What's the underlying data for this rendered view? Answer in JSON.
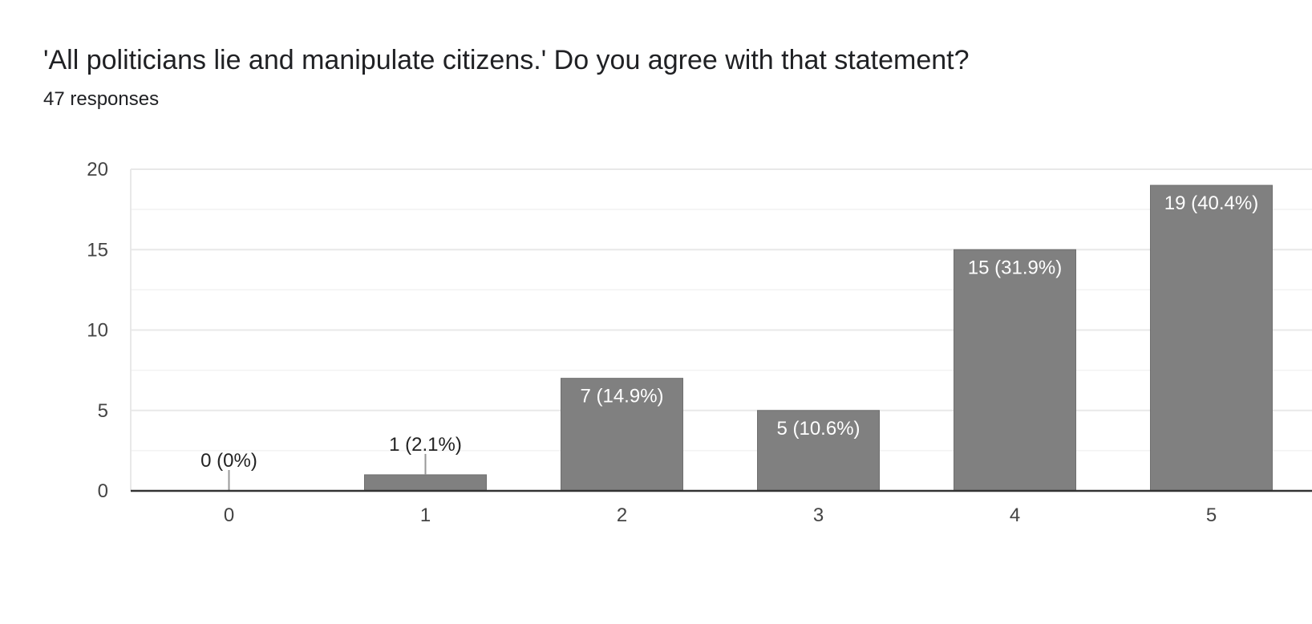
{
  "title": "'All politicians lie and manipulate citizens.' Do you agree with that statement?",
  "subtitle": "47 responses",
  "chart_data": {
    "type": "bar",
    "title": "'All politicians lie and manipulate citizens.' Do you agree with that statement?",
    "subtitle": "47 responses",
    "categories": [
      "0",
      "1",
      "2",
      "3",
      "4",
      "5"
    ],
    "values": [
      0,
      1,
      7,
      5,
      15,
      19
    ],
    "labels": [
      "0 (0%)",
      "1 (2.1%)",
      "7 (14.9%)",
      "5 (10.6%)",
      "15 (31.9%)",
      "19 (40.4%)"
    ],
    "ylim": [
      0,
      20
    ],
    "yticks": [
      0,
      5,
      10,
      15,
      20
    ],
    "grid": true,
    "colors": {
      "bar": "#808080",
      "grid": "#e8e8e8",
      "minor_grid": "#f2f2f2",
      "axis": "#333333",
      "label_inside": "#ffffff",
      "label_outside": "#222222"
    }
  }
}
